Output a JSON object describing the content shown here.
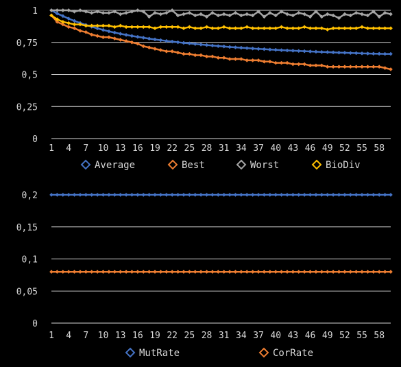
{
  "chart_data": [
    {
      "type": "line",
      "title": "",
      "xlabel": "",
      "ylabel": "",
      "ylim": [
        0,
        1
      ],
      "y_ticks": [
        "0",
        "0,25",
        "0,5",
        "0,75",
        "1"
      ],
      "y_tick_values": [
        0,
        0.25,
        0.5,
        0.75,
        1
      ],
      "x_tick_labels": [
        "1",
        "4",
        "7",
        "10",
        "13",
        "16",
        "19",
        "22",
        "25",
        "28",
        "31",
        "34",
        "37",
        "40",
        "43",
        "46",
        "49",
        "52",
        "55",
        "58"
      ],
      "x": [
        1,
        2,
        3,
        4,
        5,
        6,
        7,
        8,
        9,
        10,
        11,
        12,
        13,
        14,
        15,
        16,
        17,
        18,
        19,
        20,
        21,
        22,
        23,
        24,
        25,
        26,
        27,
        28,
        29,
        30,
        31,
        32,
        33,
        34,
        35,
        36,
        37,
        38,
        39,
        40,
        41,
        42,
        43,
        44,
        45,
        46,
        47,
        48,
        49,
        50,
        51,
        52,
        53,
        54,
        55,
        56,
        57,
        58,
        59,
        60
      ],
      "grid": true,
      "legend_position": "bottom",
      "series": [
        {
          "name": "Average",
          "color": "#4472C4",
          "values": [
            1.0,
            0.975,
            0.955,
            0.935,
            0.917,
            0.901,
            0.886,
            0.872,
            0.859,
            0.847,
            0.836,
            0.826,
            0.817,
            0.808,
            0.8,
            0.793,
            0.786,
            0.779,
            0.773,
            0.767,
            0.761,
            0.756,
            0.751,
            0.746,
            0.742,
            0.737,
            0.733,
            0.729,
            0.725,
            0.721,
            0.718,
            0.714,
            0.711,
            0.708,
            0.705,
            0.702,
            0.699,
            0.697,
            0.694,
            0.692,
            0.689,
            0.687,
            0.685,
            0.683,
            0.681,
            0.679,
            0.677,
            0.675,
            0.674,
            0.672,
            0.67,
            0.669,
            0.667,
            0.666,
            0.664,
            0.663,
            0.662,
            0.661,
            0.66,
            0.66
          ]
        },
        {
          "name": "Best",
          "color": "#ED7D31",
          "values": [
            0.96,
            0.91,
            0.89,
            0.87,
            0.86,
            0.84,
            0.83,
            0.81,
            0.8,
            0.79,
            0.79,
            0.78,
            0.77,
            0.76,
            0.75,
            0.74,
            0.72,
            0.71,
            0.7,
            0.69,
            0.68,
            0.68,
            0.67,
            0.66,
            0.66,
            0.65,
            0.65,
            0.64,
            0.64,
            0.63,
            0.63,
            0.62,
            0.62,
            0.62,
            0.61,
            0.61,
            0.61,
            0.6,
            0.6,
            0.59,
            0.59,
            0.59,
            0.58,
            0.58,
            0.58,
            0.57,
            0.57,
            0.57,
            0.56,
            0.56,
            0.56,
            0.56,
            0.56,
            0.56,
            0.56,
            0.56,
            0.56,
            0.56,
            0.55,
            0.54
          ]
        },
        {
          "name": "Worst",
          "color": "#A5A5A5",
          "values": [
            1.0,
            1.0,
            1.0,
            1.0,
            0.99,
            1.0,
            0.99,
            0.98,
            0.99,
            0.98,
            0.98,
            0.99,
            0.97,
            0.98,
            0.99,
            1.0,
            0.99,
            0.95,
            0.98,
            0.97,
            0.98,
            1.0,
            0.96,
            0.97,
            0.98,
            0.96,
            0.97,
            0.95,
            0.98,
            0.96,
            0.97,
            0.96,
            0.98,
            0.96,
            0.97,
            0.96,
            0.99,
            0.95,
            0.98,
            0.96,
            0.99,
            0.97,
            0.96,
            0.98,
            0.97,
            0.95,
            0.99,
            0.95,
            0.97,
            0.96,
            0.94,
            0.97,
            0.96,
            0.98,
            0.97,
            0.96,
            0.99,
            0.95,
            0.98,
            0.97
          ]
        },
        {
          "name": "BioDiv",
          "color": "#FFC000",
          "values": [
            0.96,
            0.93,
            0.91,
            0.9,
            0.89,
            0.89,
            0.88,
            0.88,
            0.88,
            0.88,
            0.88,
            0.87,
            0.88,
            0.87,
            0.87,
            0.87,
            0.87,
            0.87,
            0.86,
            0.87,
            0.87,
            0.87,
            0.87,
            0.86,
            0.87,
            0.86,
            0.86,
            0.87,
            0.86,
            0.86,
            0.87,
            0.86,
            0.86,
            0.86,
            0.87,
            0.86,
            0.86,
            0.86,
            0.86,
            0.86,
            0.87,
            0.86,
            0.86,
            0.86,
            0.87,
            0.86,
            0.86,
            0.86,
            0.85,
            0.86,
            0.86,
            0.86,
            0.86,
            0.86,
            0.87,
            0.86,
            0.86,
            0.86,
            0.86,
            0.86
          ]
        }
      ]
    },
    {
      "type": "line",
      "title": "",
      "xlabel": "",
      "ylabel": "",
      "ylim": [
        0,
        0.2
      ],
      "y_ticks": [
        "0",
        "0,05",
        "0,1",
        "0,15",
        "0,2"
      ],
      "y_tick_values": [
        0,
        0.05,
        0.1,
        0.15,
        0.2
      ],
      "x_tick_labels": [
        "1",
        "4",
        "7",
        "10",
        "13",
        "16",
        "19",
        "22",
        "25",
        "28",
        "31",
        "34",
        "37",
        "40",
        "43",
        "46",
        "49",
        "52",
        "55",
        "58"
      ],
      "x": [
        1,
        2,
        3,
        4,
        5,
        6,
        7,
        8,
        9,
        10,
        11,
        12,
        13,
        14,
        15,
        16,
        17,
        18,
        19,
        20,
        21,
        22,
        23,
        24,
        25,
        26,
        27,
        28,
        29,
        30,
        31,
        32,
        33,
        34,
        35,
        36,
        37,
        38,
        39,
        40,
        41,
        42,
        43,
        44,
        45,
        46,
        47,
        48,
        49,
        50,
        51,
        52,
        53,
        54,
        55,
        56,
        57,
        58,
        59,
        60
      ],
      "grid": true,
      "legend_position": "bottom",
      "series": [
        {
          "name": "MutRate",
          "color": "#4472C4",
          "values": [
            0.2,
            0.2,
            0.2,
            0.2,
            0.2,
            0.2,
            0.2,
            0.2,
            0.2,
            0.2,
            0.2,
            0.2,
            0.2,
            0.2,
            0.2,
            0.2,
            0.2,
            0.2,
            0.2,
            0.2,
            0.2,
            0.2,
            0.2,
            0.2,
            0.2,
            0.2,
            0.2,
            0.2,
            0.2,
            0.2,
            0.2,
            0.2,
            0.2,
            0.2,
            0.2,
            0.2,
            0.2,
            0.2,
            0.2,
            0.2,
            0.2,
            0.2,
            0.2,
            0.2,
            0.2,
            0.2,
            0.2,
            0.2,
            0.2,
            0.2,
            0.2,
            0.2,
            0.2,
            0.2,
            0.2,
            0.2,
            0.2,
            0.2,
            0.2,
            0.2
          ]
        },
        {
          "name": "CorRate",
          "color": "#ED7D31",
          "values": [
            0.08,
            0.08,
            0.08,
            0.08,
            0.08,
            0.08,
            0.08,
            0.08,
            0.08,
            0.08,
            0.08,
            0.08,
            0.08,
            0.08,
            0.08,
            0.08,
            0.08,
            0.08,
            0.08,
            0.08,
            0.08,
            0.08,
            0.08,
            0.08,
            0.08,
            0.08,
            0.08,
            0.08,
            0.08,
            0.08,
            0.08,
            0.08,
            0.08,
            0.08,
            0.08,
            0.08,
            0.08,
            0.08,
            0.08,
            0.08,
            0.08,
            0.08,
            0.08,
            0.08,
            0.08,
            0.08,
            0.08,
            0.08,
            0.08,
            0.08,
            0.08,
            0.08,
            0.08,
            0.08,
            0.08,
            0.08,
            0.08,
            0.08,
            0.08,
            0.08
          ]
        }
      ]
    }
  ]
}
